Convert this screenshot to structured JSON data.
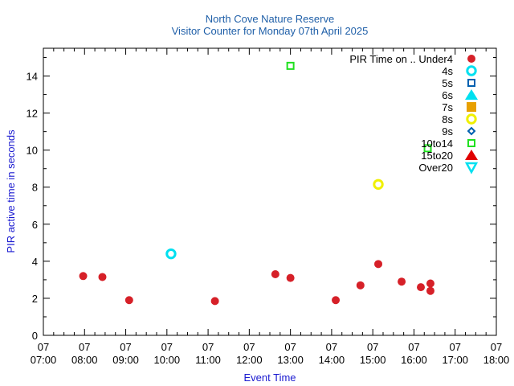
{
  "chart_data": {
    "type": "scatter",
    "title": "North Cove Nature Reserve",
    "subtitle": "Visitor Counter for Monday 07th April 2025",
    "xlabel": "Event Time",
    "ylabel": "PIR active time in seconds",
    "xlim": [
      "07:00",
      "18:00"
    ],
    "ylim": [
      0,
      15.5
    ],
    "x_ticks": [
      {
        "day": "07",
        "time": "07:00"
      },
      {
        "day": "07",
        "time": "08:00"
      },
      {
        "day": "07",
        "time": "09:00"
      },
      {
        "day": "07",
        "time": "10:00"
      },
      {
        "day": "07",
        "time": "11:00"
      },
      {
        "day": "07",
        "time": "12:00"
      },
      {
        "day": "07",
        "time": "13:00"
      },
      {
        "day": "07",
        "time": "14:00"
      },
      {
        "day": "07",
        "time": "15:00"
      },
      {
        "day": "07",
        "time": "16:00"
      },
      {
        "day": "07",
        "time": "17:00"
      },
      {
        "day": "07",
        "time": "18:00"
      }
    ],
    "y_ticks": [
      "0",
      "2",
      "4",
      "6",
      "8",
      "10",
      "12",
      "14"
    ],
    "y_tick_values": [
      0,
      2,
      4,
      6,
      8,
      10,
      12,
      14
    ],
    "grid": false,
    "legend_position": "top-right",
    "legend_title": "PIR Time on ..",
    "series": [
      {
        "name": "Under4",
        "marker": "filled-circle",
        "color": "#d62028",
        "points": [
          {
            "x": "07:58",
            "y": 3.2
          },
          {
            "x": "08:26",
            "y": 3.15
          },
          {
            "x": "09:05",
            "y": 1.9
          },
          {
            "x": "11:10",
            "y": 1.85
          },
          {
            "x": "12:38",
            "y": 3.3
          },
          {
            "x": "13:00",
            "y": 3.1
          },
          {
            "x": "14:06",
            "y": 1.9
          },
          {
            "x": "14:42",
            "y": 2.7
          },
          {
            "x": "15:08",
            "y": 3.85
          },
          {
            "x": "15:42",
            "y": 2.9
          },
          {
            "x": "16:10",
            "y": 2.6
          },
          {
            "x": "16:24",
            "y": 2.8
          },
          {
            "x": "16:24",
            "y": 2.4
          }
        ]
      },
      {
        "name": "4s",
        "marker": "open-circle",
        "color": "#00e0f0",
        "points": [
          {
            "x": "10:06",
            "y": 4.4
          }
        ]
      },
      {
        "name": "5s",
        "marker": "open-square",
        "color": "#0060b0",
        "points": []
      },
      {
        "name": "6s",
        "marker": "filled-triangle-up",
        "color": "#00e0f0",
        "points": []
      },
      {
        "name": "7s",
        "marker": "filled-square",
        "color": "#e8a000",
        "points": []
      },
      {
        "name": "8s",
        "marker": "open-circle",
        "color": "#f0f000",
        "points": [
          {
            "x": "15:08",
            "y": 8.15
          }
        ]
      },
      {
        "name": "9s",
        "marker": "open-diamond",
        "color": "#0060b0",
        "points": []
      },
      {
        "name": "10to14",
        "marker": "open-square",
        "color": "#20e020",
        "points": [
          {
            "x": "16:20",
            "y": 10.1
          },
          {
            "x": "13:00",
            "y": 14.55
          }
        ]
      },
      {
        "name": "15to20",
        "marker": "filled-triangle-up",
        "color": "#e00000",
        "points": []
      },
      {
        "name": "Over20",
        "marker": "open-triangle-down",
        "color": "#00e0f0",
        "points": []
      }
    ]
  }
}
